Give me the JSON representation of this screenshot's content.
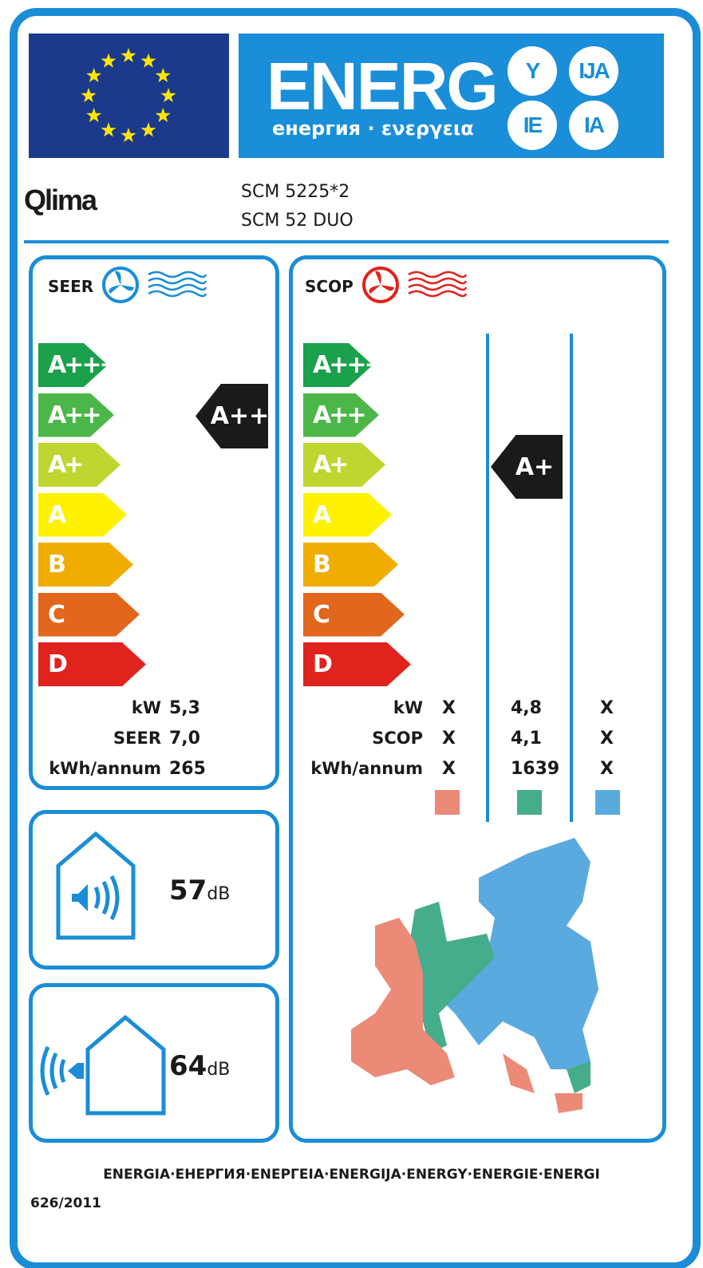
{
  "header": {
    "energ": "ENERG",
    "subtitle": "енергия · ενεργεια",
    "suffixes": [
      "Y",
      "IJA",
      "IE",
      "IA"
    ]
  },
  "brand": {
    "logo": "Qlima",
    "models": [
      "SCM 5225*2",
      "SCM 52 DUO"
    ]
  },
  "classes": [
    "A+++",
    "A++",
    "A+",
    "A",
    "B",
    "C",
    "D"
  ],
  "class_colors": [
    "#1ba14b",
    "#4cb748",
    "#bed62f",
    "#fff200",
    "#f0ac00",
    "#e2661b",
    "#e0231d"
  ],
  "seer": {
    "title": "SEER",
    "icon": "fan-cooling-icon",
    "rating": "A++",
    "rows": [
      {
        "label": "kW",
        "value": "5,3"
      },
      {
        "label": "SEER",
        "value": "7,0"
      },
      {
        "label": "kWh/annum",
        "value": "265"
      }
    ]
  },
  "scop": {
    "title": "SCOP",
    "icon": "fan-heating-icon",
    "rating": "A+",
    "labels": [
      "kW",
      "SCOP",
      "kWh/annum"
    ],
    "zones": [
      {
        "color": "#ec8a78",
        "values": [
          "X",
          "X",
          "X"
        ]
      },
      {
        "color": "#45ad8c",
        "values": [
          "4,8",
          "4,1",
          "1639"
        ]
      },
      {
        "color": "#5aaadf",
        "values": [
          "X",
          "X",
          "X"
        ]
      }
    ]
  },
  "noise": {
    "indoor": {
      "value": "57",
      "unit": "dB"
    },
    "outdoor": {
      "value": "64",
      "unit": "dB"
    }
  },
  "footer": {
    "languages": "ENERGIA·ЕНЕРГИЯ·ΕΝΕΡΓΕΙΑ·ENERGIJA·ENERGY·ENERGIE·ENERGI",
    "regulation": "626/2011"
  }
}
